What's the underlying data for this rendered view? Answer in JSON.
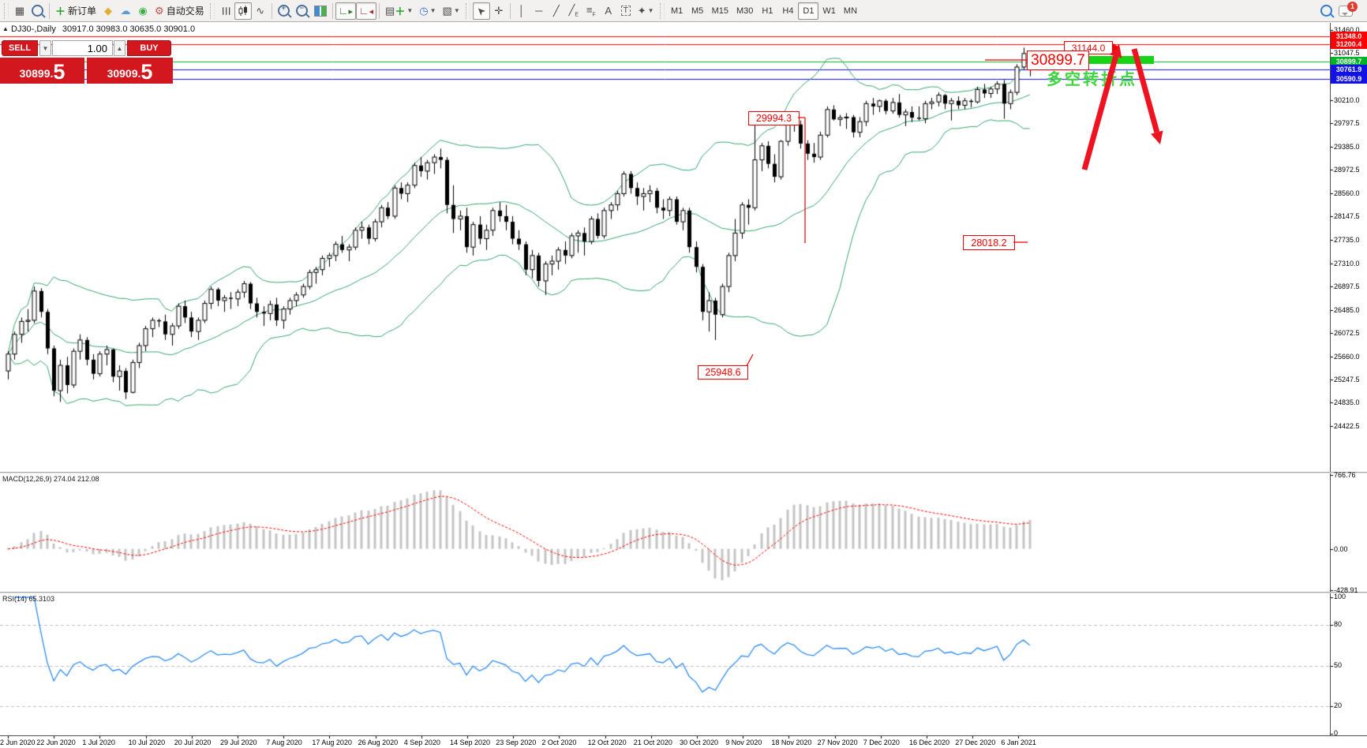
{
  "toolbar": {
    "new_order": "新订单",
    "auto_trading": "自动交易",
    "timeframes": [
      "M1",
      "M5",
      "M15",
      "M30",
      "H1",
      "H4",
      "D1",
      "W1",
      "MN"
    ],
    "active_timeframe": "D1",
    "notification_count": "1"
  },
  "header": {
    "symbol_title": "DJ30-,Daily",
    "ohlc": "30917.0 30983.0 30635.0 30901.0"
  },
  "trade_panel": {
    "sell_label": "SELL",
    "buy_label": "BUY",
    "volume": "1.00",
    "sell_price_int": "30899.",
    "sell_price_frac": "5",
    "buy_price_int": "30909.",
    "buy_price_frac": "5"
  },
  "indicators": {
    "macd_label": "MACD(12,26,9) 274.04 212.08",
    "rsi_label": "RSI(14) 65.3103"
  },
  "annotations": {
    "high_label": "31144.0",
    "resistance_label": "30899.7",
    "level_29994": "29994.3",
    "level_28018": "28018.2",
    "level_25948": "25948.6",
    "turning_point_text": "多空转折点"
  },
  "chart_data": {
    "type": "candlestick",
    "symbol": "DJ30",
    "timeframe": "Daily",
    "title": "DJ30-,Daily 30917.0 30983.0 30635.0 30901.0",
    "y_axis_ticks": [
      "31460.0",
      "31047.5",
      "30210.0",
      "29797.5",
      "29385.0",
      "28972.5",
      "28560.0",
      "28147.5",
      "27735.0",
      "27310.0",
      "26897.5",
      "26485.0",
      "26072.5",
      "25660.0",
      "25247.5",
      "24835.0",
      "24422.5"
    ],
    "y_axis_range": [
      23610,
      31430
    ],
    "levels": [
      {
        "price": 31348.0,
        "color": "#ff0000"
      },
      {
        "price": 31200.4,
        "color": "#ff0000"
      },
      {
        "price": 30899.7,
        "color": "#00b428"
      },
      {
        "price": 30761.9,
        "color": "#1212e6"
      },
      {
        "price": 30590.9,
        "color": "#1212e6"
      }
    ],
    "bollinger": {
      "period": 20,
      "deviation": 2,
      "color": "#3aa66f"
    },
    "macd": {
      "fast": 12,
      "slow": 26,
      "signal": 9,
      "value": 274.04,
      "signal_value": 212.08,
      "axis_ticks": [
        "766.76",
        "0.00",
        "-428.91"
      ],
      "range": [
        -428.91,
        766.76
      ]
    },
    "rsi": {
      "period": 14,
      "value": 65.3103,
      "axis_ticks": [
        "100",
        "80",
        "50",
        "20",
        "0"
      ],
      "levels": [
        80,
        50,
        20
      ],
      "range": [
        0,
        100
      ]
    },
    "x_axis_dates": [
      "2 Jun 2020",
      "22 Jun 2020",
      "1 Jul 2020",
      "10 Jul 2020",
      "20 Jul 2020",
      "29 Jul 2020",
      "7 Aug 2020",
      "17 Aug 2020",
      "26 Aug 2020",
      "4 Sep 2020",
      "14 Sep 2020",
      "23 Sep 2020",
      "2 Oct 2020",
      "12 Oct 2020",
      "21 Oct 2020",
      "30 Oct 2020",
      "9 Nov 2020",
      "18 Nov 2020",
      "27 Nov 2020",
      "7 Dec 2020",
      "16 Dec 2020",
      "27 Dec 2020",
      "6 Jan 2021"
    ],
    "ohlc": [
      [
        25400,
        25750,
        25250,
        25700
      ],
      [
        25700,
        26100,
        25600,
        26050
      ],
      [
        26050,
        26350,
        25900,
        26280
      ],
      [
        26280,
        26500,
        26100,
        26300
      ],
      [
        26300,
        26900,
        26250,
        26820
      ],
      [
        26820,
        26870,
        26350,
        26450
      ],
      [
        26450,
        26500,
        25700,
        25800
      ],
      [
        25800,
        25850,
        24950,
        25050
      ],
      [
        25050,
        25600,
        24850,
        25500
      ],
      [
        25500,
        25650,
        25000,
        25150
      ],
      [
        25150,
        25800,
        25100,
        25750
      ],
      [
        25750,
        26050,
        25600,
        25950
      ],
      [
        25950,
        26000,
        25500,
        25600
      ],
      [
        25600,
        25700,
        25250,
        25350
      ],
      [
        25350,
        25750,
        25300,
        25700
      ],
      [
        25700,
        25850,
        25500,
        25780
      ],
      [
        25780,
        25800,
        25200,
        25300
      ],
      [
        25300,
        25500,
        25050,
        25400
      ],
      [
        25400,
        25450,
        24900,
        25020
      ],
      [
        25020,
        25600,
        25000,
        25550
      ],
      [
        25550,
        25900,
        25450,
        25850
      ],
      [
        25850,
        26200,
        25750,
        26150
      ],
      [
        26150,
        26350,
        26000,
        26300
      ],
      [
        26300,
        26330,
        26180,
        26280
      ],
      [
        26280,
        26400,
        25950,
        26050
      ],
      [
        26050,
        26250,
        25850,
        26200
      ],
      [
        26200,
        26600,
        26150,
        26550
      ],
      [
        26550,
        26650,
        26250,
        26350
      ],
      [
        26350,
        26450,
        26000,
        26100
      ],
      [
        26100,
        26350,
        25950,
        26300
      ],
      [
        26300,
        26650,
        26250,
        26600
      ],
      [
        26600,
        26900,
        26500,
        26850
      ],
      [
        26850,
        26880,
        26550,
        26650
      ],
      [
        26650,
        26750,
        26450,
        26700
      ],
      [
        26700,
        26800,
        26500,
        26680
      ],
      [
        26680,
        26850,
        26550,
        26800
      ],
      [
        26800,
        27000,
        26700,
        26950
      ],
      [
        26950,
        26980,
        26500,
        26600
      ],
      [
        26600,
        26700,
        26350,
        26450
      ],
      [
        26450,
        26550,
        26200,
        26420
      ],
      [
        26420,
        26650,
        26300,
        26580
      ],
      [
        26580,
        26700,
        26200,
        26300
      ],
      [
        26300,
        26550,
        26150,
        26500
      ],
      [
        26500,
        26700,
        26400,
        26650
      ],
      [
        26650,
        26800,
        26550,
        26750
      ],
      [
        26750,
        26950,
        26700,
        26900
      ],
      [
        26900,
        27200,
        26850,
        27150
      ],
      [
        27150,
        27250,
        26950,
        27200
      ],
      [
        27200,
        27450,
        27100,
        27400
      ],
      [
        27400,
        27500,
        27250,
        27450
      ],
      [
        27450,
        27700,
        27350,
        27650
      ],
      [
        27650,
        27800,
        27500,
        27550
      ],
      [
        27550,
        27650,
        27350,
        27600
      ],
      [
        27600,
        27950,
        27550,
        27900
      ],
      [
        27900,
        28050,
        27750,
        27950
      ],
      [
        27950,
        28000,
        27650,
        27750
      ],
      [
        27750,
        28100,
        27700,
        28050
      ],
      [
        28050,
        28350,
        27950,
        28300
      ],
      [
        28300,
        28400,
        28100,
        28150
      ],
      [
        28150,
        28700,
        28100,
        28650
      ],
      [
        28650,
        28750,
        28450,
        28550
      ],
      [
        28550,
        28750,
        28400,
        28700
      ],
      [
        28700,
        29100,
        28650,
        29050
      ],
      [
        29050,
        29200,
        28850,
        28950
      ],
      [
        28950,
        29150,
        28800,
        29100
      ],
      [
        29100,
        29250,
        28900,
        29200
      ],
      [
        29200,
        29350,
        29000,
        29150
      ],
      [
        29150,
        29200,
        28200,
        28350
      ],
      [
        28350,
        28700,
        27850,
        28100
      ],
      [
        28100,
        28250,
        27900,
        28150
      ],
      [
        28150,
        28300,
        27500,
        27600
      ],
      [
        27600,
        28050,
        27450,
        28000
      ],
      [
        28000,
        28150,
        27650,
        27750
      ],
      [
        27750,
        28000,
        27550,
        27900
      ],
      [
        27900,
        28300,
        27800,
        28250
      ],
      [
        28250,
        28400,
        28050,
        28150
      ],
      [
        28150,
        28350,
        27900,
        28050
      ],
      [
        28050,
        28150,
        27650,
        27750
      ],
      [
        27750,
        27900,
        27550,
        27650
      ],
      [
        27650,
        27700,
        27100,
        27200
      ],
      [
        27200,
        27550,
        27050,
        27450
      ],
      [
        27450,
        27500,
        26900,
        27000
      ],
      [
        27000,
        27350,
        26750,
        27300
      ],
      [
        27300,
        27450,
        27100,
        27350
      ],
      [
        27350,
        27600,
        27200,
        27550
      ],
      [
        27550,
        27700,
        27300,
        27450
      ],
      [
        27450,
        27850,
        27400,
        27800
      ],
      [
        27800,
        27900,
        27500,
        27850
      ],
      [
        27850,
        27950,
        27450,
        27700
      ],
      [
        27700,
        28150,
        27650,
        28100
      ],
      [
        28100,
        28200,
        27750,
        27800
      ],
      [
        27800,
        28300,
        27750,
        28250
      ],
      [
        28250,
        28400,
        28100,
        28350
      ],
      [
        28350,
        28600,
        28250,
        28550
      ],
      [
        28550,
        28950,
        28500,
        28900
      ],
      [
        28900,
        28950,
        28550,
        28650
      ],
      [
        28650,
        28750,
        28350,
        28500
      ],
      [
        28500,
        28650,
        28250,
        28550
      ],
      [
        28550,
        28700,
        28400,
        28600
      ],
      [
        28600,
        28650,
        28200,
        28300
      ],
      [
        28300,
        28450,
        28100,
        28250
      ],
      [
        28250,
        28500,
        28150,
        28450
      ],
      [
        28450,
        28500,
        28000,
        28050
      ],
      [
        28050,
        28300,
        27900,
        28250
      ],
      [
        28250,
        28300,
        27500,
        27600
      ],
      [
        27600,
        27700,
        27150,
        27250
      ],
      [
        27250,
        27300,
        26300,
        26450
      ],
      [
        26450,
        26800,
        26100,
        26650
      ],
      [
        26650,
        26700,
        25949,
        26400
      ],
      [
        26400,
        26950,
        26350,
        26900
      ],
      [
        26900,
        27500,
        26800,
        27450
      ],
      [
        27450,
        28100,
        27350,
        27850
      ],
      [
        27850,
        28400,
        27750,
        28350
      ],
      [
        28350,
        28450,
        28000,
        28300
      ],
      [
        28300,
        29994,
        28250,
        29150
      ],
      [
        29150,
        29450,
        28950,
        29400
      ],
      [
        29400,
        29480,
        29000,
        29080
      ],
      [
        29080,
        29250,
        28750,
        28850
      ],
      [
        28850,
        29500,
        28800,
        29480
      ],
      [
        29480,
        29950,
        29400,
        29900
      ],
      [
        29900,
        29950,
        29650,
        29780
      ],
      [
        29780,
        29850,
        29350,
        29440
      ],
      [
        29440,
        29500,
        29150,
        29260
      ],
      [
        29260,
        29450,
        29100,
        29200
      ],
      [
        29200,
        29650,
        29150,
        29590
      ],
      [
        29590,
        30100,
        29550,
        30045
      ],
      [
        30045,
        30120,
        29850,
        29870
      ],
      [
        29870,
        29950,
        29750,
        29900
      ],
      [
        29900,
        29980,
        29700,
        29910
      ],
      [
        29910,
        29950,
        29550,
        29640
      ],
      [
        29640,
        29910,
        29550,
        29830
      ],
      [
        29830,
        30200,
        29750,
        30150
      ],
      [
        30150,
        30250,
        29950,
        30100
      ],
      [
        30100,
        30220,
        30000,
        30200
      ],
      [
        30200,
        30230,
        29960,
        30020
      ],
      [
        30020,
        30250,
        29970,
        30170
      ],
      [
        30170,
        30320,
        29900,
        29950
      ],
      [
        29950,
        30050,
        29750,
        30000
      ],
      [
        30000,
        30100,
        29820,
        29900
      ],
      [
        29900,
        30100,
        29850,
        29880
      ],
      [
        29880,
        30200,
        29800,
        30150
      ],
      [
        30150,
        30250,
        30050,
        30180
      ],
      [
        30180,
        30350,
        30100,
        30300
      ],
      [
        30300,
        30320,
        30050,
        30150
      ],
      [
        30150,
        30250,
        29850,
        30200
      ],
      [
        30200,
        30280,
        30050,
        30120
      ],
      [
        30120,
        30250,
        30050,
        30200
      ],
      [
        30200,
        30230,
        30080,
        30180
      ],
      [
        30180,
        30450,
        30150,
        30400
      ],
      [
        30400,
        30500,
        30250,
        30330
      ],
      [
        30330,
        30450,
        30250,
        30410
      ],
      [
        30410,
        30550,
        30320,
        30500
      ],
      [
        30500,
        30570,
        29880,
        30150
      ],
      [
        30150,
        30400,
        30050,
        30350
      ],
      [
        30350,
        30850,
        30300,
        30800
      ],
      [
        30800,
        31144,
        30750,
        31040
      ],
      [
        30917,
        30983,
        30635,
        30901
      ]
    ]
  }
}
